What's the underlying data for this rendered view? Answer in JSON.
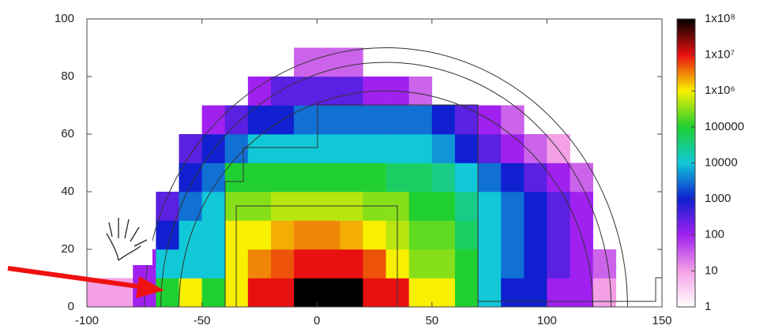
{
  "chart_data": {
    "type": "heatmap",
    "xbins": [
      -100,
      -90,
      -80,
      -70,
      -60,
      -50,
      -40,
      -30,
      -20,
      -10,
      0,
      10,
      20,
      30,
      40,
      50,
      60,
      70,
      80,
      90,
      100,
      110,
      120,
      130,
      140,
      150
    ],
    "ybins": [
      0,
      10,
      20,
      30,
      40,
      50,
      60,
      70,
      80,
      90,
      100
    ],
    "z": [
      [
        10,
        10,
        100,
        100000,
        1000000,
        100000,
        1000000,
        10000000,
        10000000,
        100000000,
        100000000,
        100000000,
        10000000,
        10000000,
        1000000,
        1000000,
        100000,
        10000,
        1000,
        1000,
        100,
        100,
        10,
        null,
        null
      ],
      [
        null,
        null,
        100,
        10000,
        10000,
        10000,
        1000000,
        3000000,
        5000000,
        10000000,
        10000000,
        10000000,
        5000000,
        1000000,
        300000,
        300000,
        100000,
        10000,
        3000,
        1000,
        300,
        100,
        30,
        null,
        null
      ],
      [
        null,
        null,
        null,
        1000,
        10000,
        10000,
        1000000,
        1000000,
        2000000,
        3000000,
        3000000,
        2000000,
        1000000,
        500000,
        200000,
        200000,
        50000,
        10000,
        3000,
        1000,
        300,
        100,
        null,
        null,
        null
      ],
      [
        null,
        null,
        null,
        300,
        3000,
        10000,
        300000,
        300000,
        500000,
        500000,
        500000,
        500000,
        300000,
        300000,
        100000,
        100000,
        30000,
        10000,
        3000,
        1000,
        300,
        100,
        null,
        null,
        null
      ],
      [
        null,
        null,
        null,
        null,
        1000,
        3000,
        100000,
        100000,
        100000,
        100000,
        100000,
        100000,
        100000,
        50000,
        50000,
        30000,
        10000,
        3000,
        1000,
        300,
        100,
        30,
        null,
        null,
        null
      ],
      [
        null,
        null,
        null,
        null,
        300,
        1000,
        3000,
        10000,
        10000,
        10000,
        10000,
        10000,
        10000,
        10000,
        10000,
        5000,
        1000,
        300,
        100,
        30,
        10,
        null,
        null,
        null,
        null
      ],
      [
        null,
        null,
        null,
        null,
        null,
        100,
        300,
        1000,
        1000,
        3000,
        3000,
        3000,
        3000,
        3000,
        3000,
        1000,
        300,
        100,
        30,
        null,
        null,
        null,
        null,
        null,
        null
      ],
      [
        null,
        null,
        null,
        null,
        null,
        null,
        null,
        100,
        300,
        300,
        300,
        300,
        100,
        100,
        30,
        null,
        null,
        null,
        null,
        null,
        null,
        null,
        null,
        null,
        null
      ],
      [
        null,
        null,
        null,
        null,
        null,
        null,
        null,
        null,
        null,
        30,
        30,
        30,
        null,
        null,
        null,
        null,
        null,
        null,
        null,
        null,
        null,
        null,
        null,
        null,
        null
      ],
      [
        null,
        null,
        null,
        null,
        null,
        null,
        null,
        null,
        null,
        null,
        null,
        null,
        null,
        null,
        null,
        null,
        null,
        null,
        null,
        null,
        null,
        null,
        null,
        null,
        null
      ]
    ],
    "xlim": [
      -100,
      150
    ],
    "xticks": [
      -100,
      -50,
      0,
      50,
      100,
      150
    ],
    "ylim": [
      0,
      100
    ],
    "yticks": [
      0,
      20,
      40,
      60,
      80,
      100
    ],
    "colorbar_log": true,
    "clim": [
      1,
      100000000
    ],
    "colorbar_ticks": [
      1,
      10,
      100,
      1000,
      10000,
      100000,
      {
        "value": 1000000,
        "label": "1x10⁶"
      },
      {
        "value": 10000000,
        "label": "1x10⁷"
      },
      {
        "value": 100000000,
        "label": "1x10⁸"
      }
    ],
    "colorscale": [
      "#ffffff",
      "#f4a0e6",
      "#a020f0",
      "#1020d0",
      "#10c8d8",
      "#20d030",
      "#f8f000",
      "#e81010",
      "#000000"
    ]
  }
}
